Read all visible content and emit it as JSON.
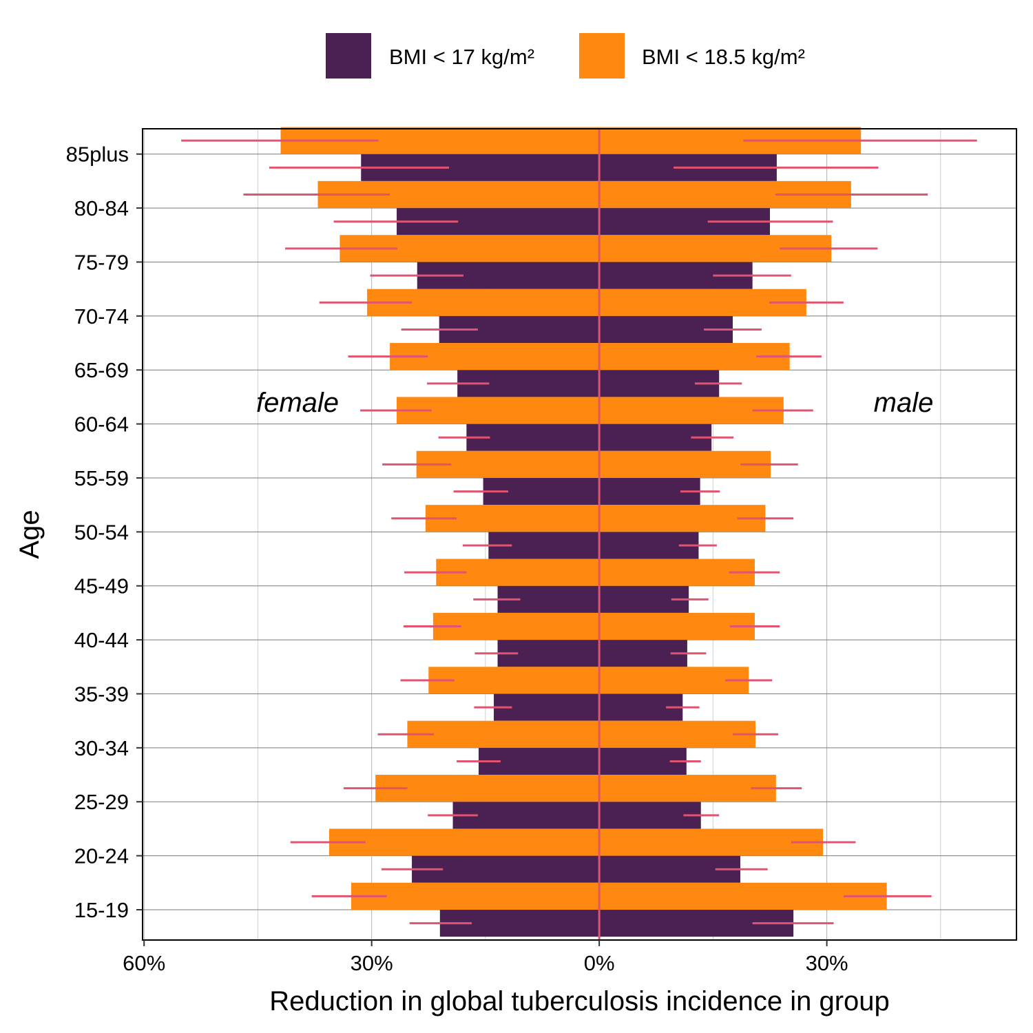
{
  "chart_data": {
    "type": "bar",
    "orientation": "horizontal",
    "layout": "population-pyramid",
    "xlabel": "Reduction in global tuberculosis incidence in group",
    "ylabel": "Age",
    "x_ticks": [
      {
        "value": -60,
        "label": "60%"
      },
      {
        "value": -30,
        "label": "30%"
      },
      {
        "value": 0,
        "label": "0%"
      },
      {
        "value": 30,
        "label": "30%"
      }
    ],
    "xlim": [
      -60.2,
      55
    ],
    "grid": true,
    "legend_position": "top",
    "side_labels": {
      "left": "female",
      "right": "male"
    },
    "categories": [
      "15-19",
      "20-24",
      "25-29",
      "30-34",
      "35-39",
      "40-44",
      "45-49",
      "50-54",
      "55-59",
      "60-64",
      "65-69",
      "70-74",
      "75-79",
      "80-84",
      "85plus"
    ],
    "series": [
      {
        "name": "BMI < 17 kg/m²",
        "color": "#4A2152",
        "female": {
          "values": [
            21.0,
            24.7,
            19.3,
            15.9,
            13.9,
            13.4,
            13.4,
            14.6,
            15.3,
            17.5,
            18.7,
            21.1,
            24.0,
            26.7,
            31.4
          ],
          "lower": [
            16.8,
            20.6,
            16.0,
            13.0,
            11.5,
            10.7,
            10.4,
            11.5,
            12.0,
            14.4,
            14.5,
            16.0,
            17.9,
            18.6,
            19.8
          ],
          "upper": [
            25.0,
            28.7,
            22.6,
            18.8,
            16.5,
            16.4,
            16.6,
            18.0,
            19.2,
            21.2,
            22.7,
            26.1,
            30.2,
            35.0,
            43.5
          ]
        },
        "male": {
          "values": [
            25.6,
            18.6,
            13.4,
            11.5,
            11.0,
            11.6,
            11.8,
            13.1,
            13.3,
            14.8,
            15.8,
            17.6,
            20.2,
            22.5,
            23.4
          ],
          "lower": [
            20.2,
            15.3,
            11.1,
            9.3,
            8.8,
            9.4,
            9.5,
            10.5,
            10.7,
            12.1,
            12.6,
            13.8,
            15.0,
            14.3,
            9.8
          ],
          "upper": [
            30.9,
            22.2,
            15.8,
            13.4,
            13.2,
            14.1,
            14.4,
            15.5,
            15.9,
            17.7,
            18.8,
            21.4,
            25.3,
            30.8,
            36.8
          ]
        }
      },
      {
        "name": "BMI < 18.5 kg/m²",
        "color": "#FF8811",
        "female": {
          "values": [
            32.7,
            35.6,
            29.5,
            25.3,
            22.5,
            21.9,
            21.5,
            22.9,
            24.1,
            26.7,
            27.6,
            30.6,
            34.2,
            37.1,
            42.0
          ],
          "lower": [
            28.0,
            30.8,
            25.3,
            21.8,
            19.1,
            18.2,
            17.5,
            18.8,
            19.5,
            22.1,
            22.6,
            24.7,
            26.6,
            27.6,
            29.1
          ],
          "upper": [
            37.9,
            40.7,
            33.7,
            29.2,
            26.2,
            25.8,
            25.7,
            27.4,
            28.6,
            31.5,
            33.1,
            36.9,
            41.4,
            46.9,
            55.1
          ]
        },
        "male": {
          "values": [
            37.9,
            29.5,
            23.3,
            20.6,
            19.7,
            20.5,
            20.5,
            21.9,
            22.6,
            24.3,
            25.1,
            27.3,
            30.6,
            33.2,
            34.5
          ],
          "lower": [
            32.2,
            25.3,
            20.0,
            17.6,
            16.6,
            17.2,
            17.1,
            18.2,
            18.6,
            20.2,
            20.7,
            22.4,
            23.8,
            23.2,
            19.0
          ],
          "upper": [
            43.8,
            33.8,
            26.7,
            23.6,
            22.8,
            23.8,
            23.8,
            25.6,
            26.2,
            28.2,
            29.3,
            32.2,
            36.7,
            43.3,
            49.8
          ]
        }
      }
    ],
    "errorbar_color": "#E05470",
    "zero_line_color": "#E05470"
  }
}
